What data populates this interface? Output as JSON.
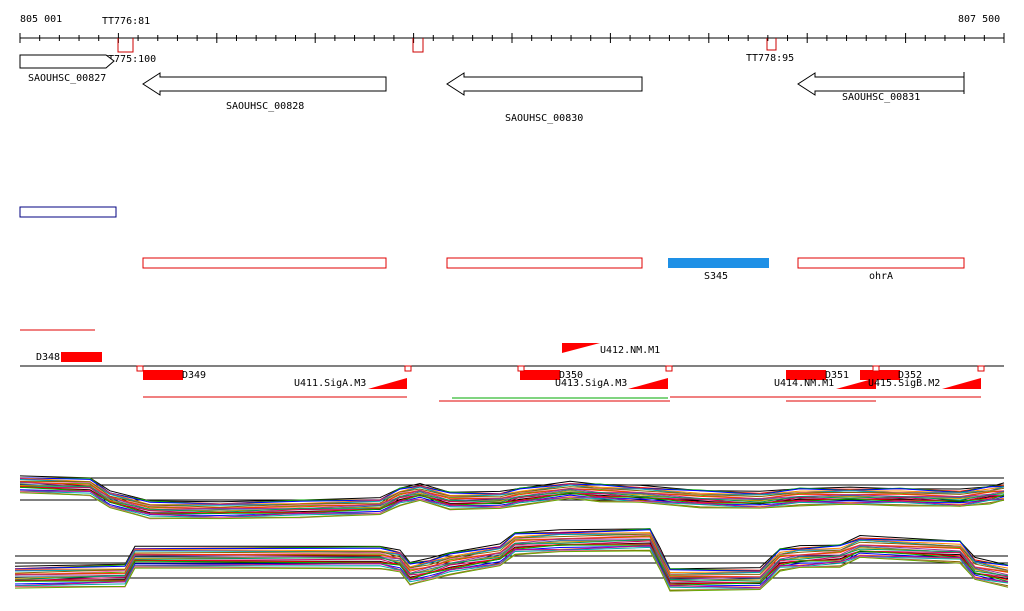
{
  "ruler": {
    "start": "805 001",
    "end": "807 500"
  },
  "terminators": [
    {
      "label": "TT776:81"
    },
    {
      "label": "TT775:100"
    },
    {
      "label": "TT778:95"
    }
  ],
  "genes": [
    {
      "label": "SAOUHSC_00827",
      "strand": "+"
    },
    {
      "label": "SAOUHSC_00828",
      "strand": "-"
    },
    {
      "label": "SAOUHSC_00830",
      "strand": "-"
    },
    {
      "label": "SAOUHSC_00831",
      "strand": "-"
    }
  ],
  "features": {
    "s345": "S345",
    "ohra": "ohrA"
  },
  "dnases": [
    "D348",
    "D349",
    "D350",
    "D351",
    "D352"
  ],
  "promoters": [
    "U412.NM.M1",
    "U411.SigA.M3",
    "U413.SigA.M3",
    "U414.NM.M1",
    "U415.SigB.M2"
  ],
  "colors": {
    "gene_outline": "#000000",
    "terminator": "#cc0000",
    "region_box": "#e00000",
    "blue_box": "#000080",
    "s345_fill": "#1e90e6",
    "dnase_fill": "#ff0000",
    "promoter_fill": "#ff0000",
    "green_line": "#00aa00"
  }
}
